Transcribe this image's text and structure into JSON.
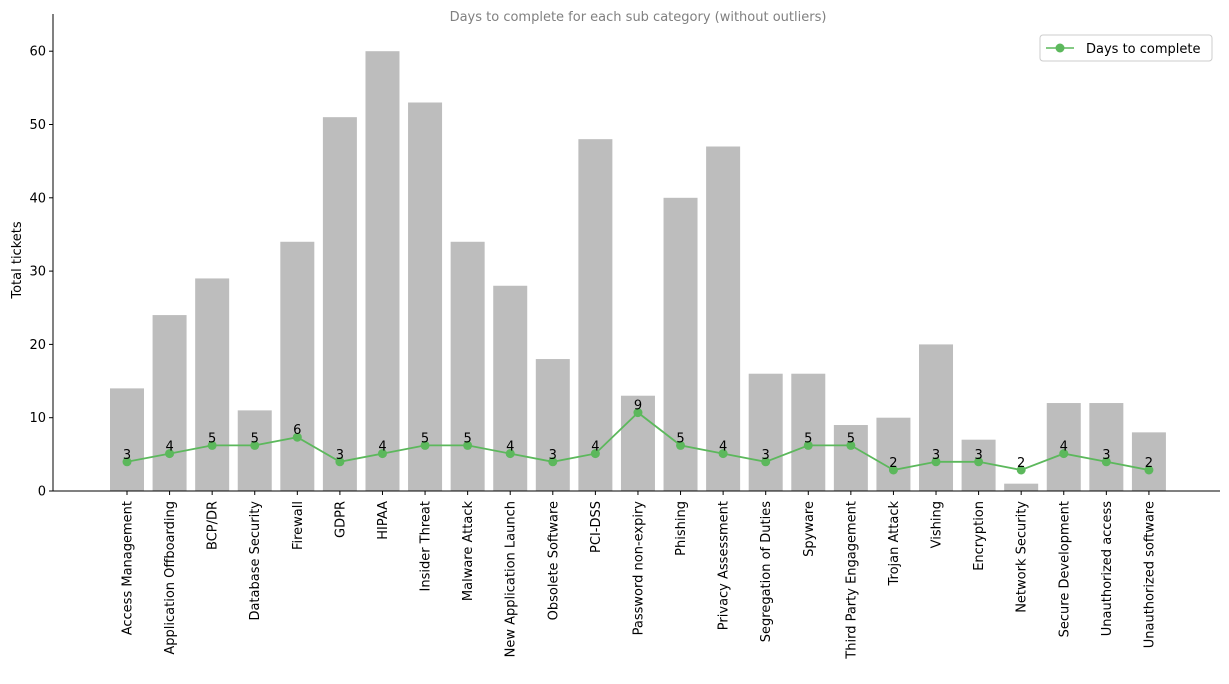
{
  "chart_data": {
    "type": "bar",
    "title": "Days to complete for each sub category (without outliers)",
    "ylabel": "Total tickets",
    "ylim": [
      0,
      63
    ],
    "yticks": [
      0,
      10,
      20,
      30,
      40,
      50,
      60
    ],
    "categories": [
      "Access Management",
      "Application Offboarding",
      "BCP/DR",
      "Database Security",
      "Firewall",
      "GDPR",
      "HIPAA",
      "Insider Threat",
      "Malware Attack",
      "New Application Launch",
      "Obsolete Software",
      "PCI-DSS",
      "Password non-expiry",
      "Phishing",
      "Privacy Assessment",
      "Segregation of Duties",
      "Spyware",
      "Third Party Engagement",
      "Trojan Attack",
      "Vishing",
      "Encryption",
      "Network Security",
      "Secure Development",
      "Unauthorized access",
      "Unauthorized software"
    ],
    "series": [
      {
        "kind": "bar",
        "color": "#bdbdbd",
        "values": [
          14,
          24,
          29,
          11,
          34,
          51,
          60,
          53,
          34,
          28,
          18,
          48,
          13,
          40,
          47,
          16,
          16,
          9,
          10,
          20,
          7,
          1,
          12,
          12,
          8
        ]
      },
      {
        "kind": "line",
        "name": "Days to complete",
        "color": "#5cb85c",
        "values": [
          3,
          4,
          5,
          5,
          6,
          3,
          4,
          5,
          5,
          4,
          3,
          4,
          9,
          5,
          4,
          3,
          5,
          5,
          2,
          3,
          3,
          2,
          4,
          3,
          2
        ]
      }
    ],
    "legend_position": "top-right",
    "grid": false
  }
}
